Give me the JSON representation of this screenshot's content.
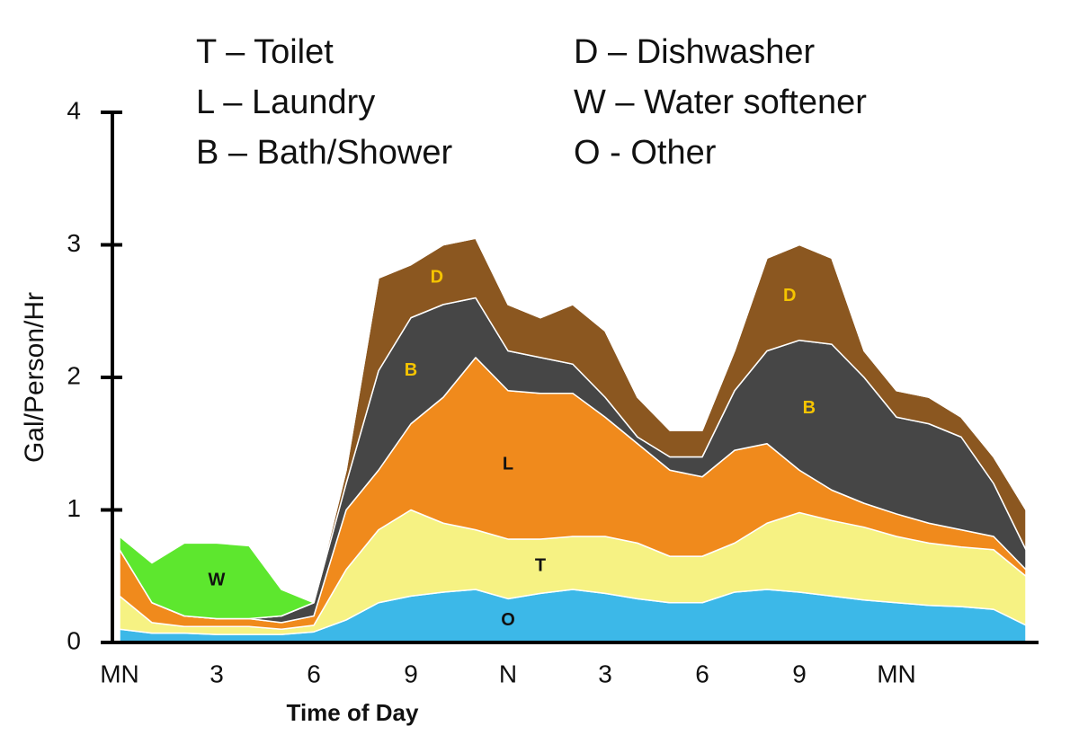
{
  "chart_data": {
    "type": "stacked_area",
    "y_label": "Gal/Person/Hr",
    "x_label": "Time of Day",
    "x": [
      0,
      1,
      2,
      3,
      4,
      5,
      6,
      7,
      8,
      9,
      10,
      11,
      12,
      13,
      14,
      15,
      16,
      17,
      18,
      19,
      20,
      21,
      22,
      23,
      24,
      25,
      26,
      27,
      28
    ],
    "xlim": [
      0,
      28
    ],
    "xticks": [
      {
        "value": 0,
        "label": "MN"
      },
      3,
      6,
      9,
      {
        "value": 12,
        "label": "N"
      },
      {
        "value": 15,
        "label": "3"
      },
      {
        "value": 18,
        "label": "6"
      },
      {
        "value": 21,
        "label": "9"
      },
      {
        "value": 24,
        "label": "MN"
      }
    ],
    "ylim": [
      0,
      4
    ],
    "yticks": [
      0,
      1,
      2,
      3,
      4
    ],
    "series": [
      {
        "name": "T – Toilet",
        "color": "#f6f283",
        "values": [
          0.25,
          0.08,
          0.05,
          0.06,
          0.06,
          0.04,
          0.05,
          0.38,
          0.55,
          0.65,
          0.52,
          0.45,
          0.45,
          0.41,
          0.4,
          0.43,
          0.42,
          0.35,
          0.35,
          0.37,
          0.5,
          0.6,
          0.57,
          0.55,
          0.5,
          0.47,
          0.45,
          0.45,
          0.37
        ]
      },
      {
        "name": "L – Laundry",
        "color": "#f08a1c",
        "values": [
          0.35,
          0.15,
          0.08,
          0.06,
          0.06,
          0.05,
          0.07,
          0.45,
          0.45,
          0.65,
          0.95,
          1.3,
          1.12,
          1.1,
          1.08,
          0.9,
          0.75,
          0.65,
          0.6,
          0.7,
          0.6,
          0.32,
          0.23,
          0.18,
          0.17,
          0.15,
          0.13,
          0.1,
          0.05
        ]
      },
      {
        "name": "B – Bath/Shower",
        "color": "#464646",
        "values": [
          0,
          0,
          0,
          0,
          0,
          0.05,
          0.1,
          0.2,
          0.75,
          0.8,
          0.7,
          0.45,
          0.3,
          0.27,
          0.22,
          0.15,
          0.05,
          0.1,
          0.15,
          0.45,
          0.7,
          0.98,
          1.1,
          0.95,
          0.73,
          0.75,
          0.7,
          0.4,
          0.15
        ]
      },
      {
        "name": "D – Dishwasher",
        "color": "#8b5720",
        "values": [
          0,
          0,
          0,
          0,
          0,
          0,
          0,
          0.1,
          0.7,
          0.4,
          0.45,
          0.45,
          0.35,
          0.3,
          0.45,
          0.5,
          0.3,
          0.2,
          0.2,
          0.3,
          0.7,
          0.72,
          0.65,
          0.2,
          0.2,
          0.2,
          0.15,
          0.2,
          0.3
        ]
      },
      {
        "name": "W – Water softener",
        "color": "#5de72e",
        "values": [
          0.1,
          0.3,
          0.55,
          0.57,
          0.55,
          0.2,
          0,
          0,
          0,
          0,
          0,
          0,
          0,
          0,
          0,
          0,
          0,
          0,
          0,
          0,
          0,
          0,
          0,
          0,
          0,
          0,
          0,
          0,
          0
        ]
      },
      {
        "name": "O - Other",
        "color": "#3cb8e8",
        "values": [
          0.1,
          0.07,
          0.07,
          0.06,
          0.06,
          0.06,
          0.08,
          0.17,
          0.3,
          0.35,
          0.38,
          0.4,
          0.33,
          0.37,
          0.4,
          0.37,
          0.33,
          0.3,
          0.3,
          0.38,
          0.4,
          0.38,
          0.35,
          0.32,
          0.3,
          0.28,
          0.27,
          0.25,
          0.13
        ]
      }
    ],
    "annotations": [
      {
        "text": "D",
        "x": 9.8,
        "color": "#f5c400"
      },
      {
        "text": "B",
        "x": 9,
        "color": "#f5c400"
      },
      {
        "text": "L",
        "x": 12,
        "color": "#111111"
      },
      {
        "text": "T",
        "x": 13,
        "color": "#111111"
      },
      {
        "text": "O",
        "x": 12,
        "color": "#111111"
      },
      {
        "text": "W",
        "x": 3,
        "color": "#111111"
      },
      {
        "text": "D",
        "x": 20.7,
        "color": "#f5c400"
      },
      {
        "text": "B",
        "x": 21.3,
        "color": "#f5c400"
      }
    ]
  }
}
